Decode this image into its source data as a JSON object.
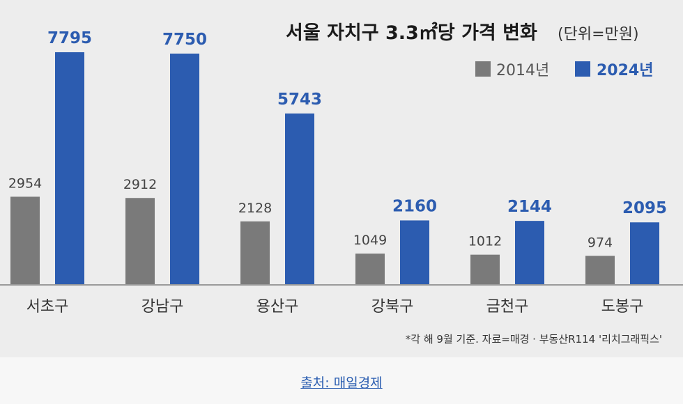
{
  "chart_data": {
    "type": "bar",
    "title": "서울 자치구 3.3㎡당 가격 변화",
    "unit_note": "(단위=만원)",
    "categories": [
      "서초구",
      "강남구",
      "용산구",
      "강북구",
      "금천구",
      "도봉구"
    ],
    "series": [
      {
        "name": "2014년",
        "values": [
          2954,
          2912,
          2128,
          1049,
          1012,
          974
        ],
        "color": "#7a7a7a"
      },
      {
        "name": "2024년",
        "values": [
          7795,
          7750,
          5743,
          2160,
          2144,
          2095
        ],
        "color": "#2c5cb0"
      }
    ],
    "ylim": [
      0,
      7795
    ],
    "grid": false,
    "legend_position": "top-right",
    "footnote": "*각 해 9월 기준. 자료=매경 · 부동산R114 '리치그래픽스'"
  },
  "caption": {
    "source_label": "출처: 매일경제"
  }
}
